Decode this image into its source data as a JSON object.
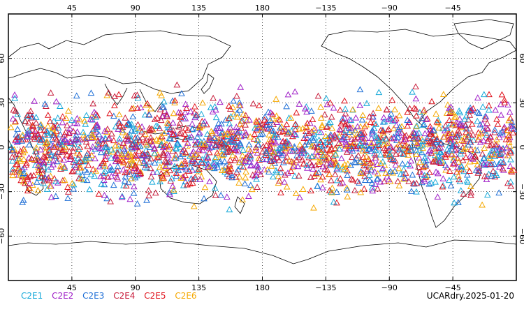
{
  "map": {
    "lon_ticks": [
      "45",
      "90",
      "135",
      "180",
      "−135",
      "−90",
      "−45"
    ],
    "lat_ticks": [
      "60",
      "30",
      "0",
      "−30",
      "−60"
    ],
    "observation_marker": "triangle"
  },
  "legend": [
    {
      "label": "C2E1",
      "color": "#17a9d9"
    },
    {
      "label": "C2E2",
      "color": "#a020c8"
    },
    {
      "label": "C2E3",
      "color": "#1f6fd6"
    },
    {
      "label": "C2E4",
      "color": "#c81e3c"
    },
    {
      "label": "C2E5",
      "color": "#e0141e"
    },
    {
      "label": "C2E6",
      "color": "#f5a800"
    }
  ],
  "product_label": "UCARdry.2025-01-20"
}
